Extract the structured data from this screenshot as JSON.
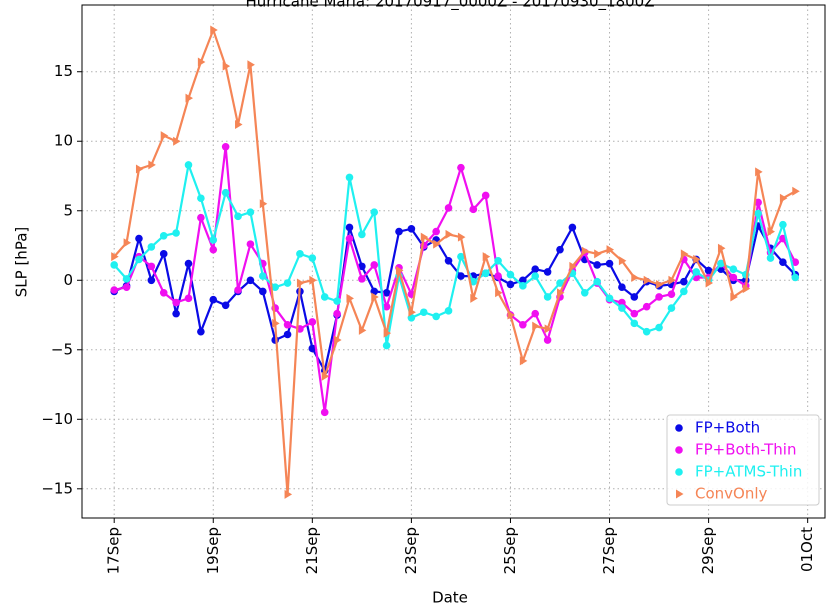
{
  "chart_data": {
    "type": "line",
    "title": "Hurricane Maria: 20170917_0000Z - 20170930_1800Z",
    "x_label": "Date",
    "y_label": "SLP [hPa]",
    "x": [
      17,
      17.25,
      17.5,
      17.75,
      18,
      18.25,
      18.5,
      18.75,
      19,
      19.25,
      19.5,
      19.75,
      20,
      20.25,
      20.5,
      20.75,
      21,
      21.25,
      21.5,
      21.75,
      22,
      22.25,
      22.5,
      22.75,
      23,
      23.25,
      23.5,
      23.75,
      24,
      24.25,
      24.5,
      24.75,
      25,
      25.25,
      25.5,
      25.75,
      26,
      26.25,
      26.5,
      26.75,
      27,
      27.25,
      27.5,
      27.75,
      28,
      28.25,
      28.5,
      28.75,
      29,
      29.25,
      29.5,
      29.75,
      30,
      30.25,
      30.5,
      30.75
    ],
    "series": [
      {
        "name": "FP+Both",
        "color": "#0a0ae6",
        "marker": "circle",
        "values": [
          -0.8,
          -0.4,
          3.0,
          0.0,
          1.9,
          -2.4,
          1.2,
          -3.7,
          -1.4,
          -1.8,
          -0.8,
          0.0,
          -0.8,
          -4.3,
          -3.9,
          -0.8,
          -4.9,
          -6.5,
          -2.5,
          3.8,
          1.0,
          -0.8,
          -0.9,
          3.5,
          3.7,
          2.4,
          2.9,
          1.4,
          0.3,
          0.3,
          0.5,
          0.2,
          -0.3,
          0.0,
          0.8,
          0.6,
          2.2,
          3.8,
          1.5,
          1.1,
          1.2,
          -0.5,
          -1.2,
          -0.1,
          -0.4,
          -0.3,
          -0.1,
          1.5,
          0.7,
          0.8,
          0.0,
          0.0,
          3.9,
          2.3,
          1.3,
          0.4
        ]
      },
      {
        "name": "FP+Both-Thin",
        "color": "#f00ff0",
        "marker": "circle",
        "values": [
          -0.7,
          -0.5,
          1.7,
          1.0,
          -0.9,
          -1.6,
          -1.3,
          4.5,
          2.2,
          9.6,
          -0.7,
          2.6,
          1.2,
          -2.0,
          -3.2,
          -3.5,
          -3.0,
          -9.5,
          -2.4,
          3.0,
          0.1,
          1.1,
          -1.9,
          0.9,
          -1.0,
          2.5,
          3.5,
          5.2,
          8.1,
          5.1,
          6.1,
          0.3,
          -2.5,
          -3.2,
          -2.4,
          -4.3,
          -1.2,
          0.7,
          2.0,
          -0.2,
          -1.4,
          -1.6,
          -2.4,
          -1.9,
          -1.2,
          -1.0,
          1.5,
          0.2,
          0.2,
          1.2,
          0.2,
          -0.4,
          5.6,
          2.0,
          3.0,
          1.3
        ]
      },
      {
        "name": "FP+ATMS-Thin",
        "color": "#1ff0f0",
        "marker": "circle",
        "values": [
          1.1,
          0.1,
          1.5,
          2.4,
          3.2,
          3.4,
          8.3,
          5.9,
          2.9,
          6.3,
          4.6,
          4.9,
          0.3,
          -0.5,
          -0.2,
          1.9,
          1.6,
          -1.2,
          -1.5,
          7.4,
          3.3,
          4.9,
          -4.7,
          0.3,
          -2.7,
          -2.3,
          -2.6,
          -2.2,
          1.7,
          -0.1,
          0.5,
          1.4,
          0.4,
          -0.4,
          0.3,
          -1.2,
          -0.2,
          0.5,
          -0.9,
          -0.1,
          -1.3,
          -2.0,
          -3.1,
          -3.7,
          -3.4,
          -2.0,
          -0.8,
          0.6,
          0.0,
          1.2,
          0.8,
          0.4,
          4.8,
          1.6,
          4.0,
          0.2
        ]
      },
      {
        "name": "ConvOnly",
        "color": "#f58556",
        "marker": "triangle",
        "values": [
          1.7,
          2.7,
          8.0,
          8.3,
          10.4,
          10.0,
          13.1,
          15.7,
          18.0,
          15.4,
          11.2,
          15.5,
          5.5,
          -3.1,
          -15.4,
          -0.2,
          0.0,
          -6.9,
          -4.3,
          -1.3,
          -3.6,
          -1.2,
          -3.8,
          0.7,
          -2.3,
          3.1,
          2.6,
          3.3,
          3.1,
          -1.3,
          1.7,
          -0.9,
          -2.5,
          -5.8,
          -3.3,
          -3.5,
          -0.9,
          1.0,
          2.1,
          1.9,
          2.2,
          1.4,
          0.2,
          0.0,
          -0.3,
          0.0,
          1.9,
          1.5,
          -0.2,
          2.3,
          -1.2,
          -0.6,
          7.8,
          3.5,
          5.9,
          6.4
        ]
      }
    ],
    "xlim": [
      16.35,
      31.35
    ],
    "xticks": [
      {
        "value": 17,
        "label": "17Sep"
      },
      {
        "value": 19,
        "label": "19Sep"
      },
      {
        "value": 21,
        "label": "21Sep"
      },
      {
        "value": 23,
        "label": "23Sep"
      },
      {
        "value": 25,
        "label": "25Sep"
      },
      {
        "value": 27,
        "label": "27Sep"
      },
      {
        "value": 29,
        "label": "29Sep"
      },
      {
        "value": 31,
        "label": "01Oct"
      }
    ],
    "ylim": [
      -17.1,
      19.8
    ],
    "yticks": [
      {
        "value": -15,
        "label": "−15"
      },
      {
        "value": -10,
        "label": "−10"
      },
      {
        "value": -5,
        "label": "−5"
      },
      0,
      5,
      10,
      15
    ],
    "grid": true,
    "legend": "lower right"
  }
}
